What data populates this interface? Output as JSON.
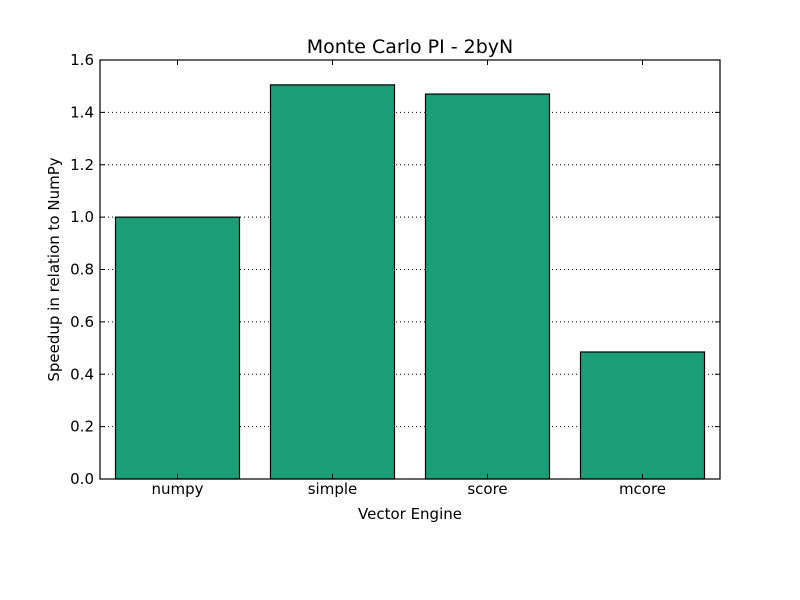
{
  "chart_data": {
    "type": "bar",
    "title": "Monte Carlo PI - 2byN",
    "xlabel": "Vector Engine",
    "ylabel": "Speedup in relation to NumPy",
    "categories": [
      "numpy",
      "simple",
      "score",
      "mcore"
    ],
    "values": [
      1.0,
      1.505,
      1.47,
      0.485
    ],
    "ylim": [
      0,
      1.6
    ],
    "yticks": [
      0.0,
      0.2,
      0.4,
      0.6,
      0.8,
      1.0,
      1.2,
      1.4,
      1.6
    ],
    "ytick_labels": [
      "0.0",
      "0.2",
      "0.4",
      "0.6",
      "0.8",
      "1.0",
      "1.2",
      "1.4",
      "1.6"
    ],
    "grid": "y-dotted",
    "bar_color": "#1b9e77"
  }
}
